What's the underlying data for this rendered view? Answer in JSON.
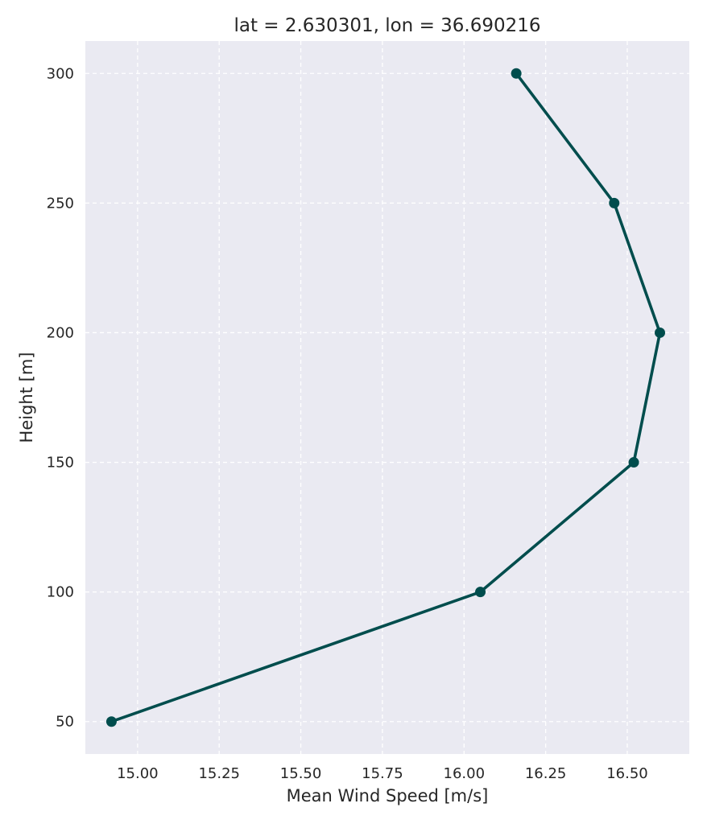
{
  "chart_data": {
    "type": "line",
    "title": "lat = 2.630301, lon = 36.690216",
    "xlabel": "Mean Wind Speed [m/s]",
    "ylabel": "Height [m]",
    "xlim": [
      14.84,
      16.69
    ],
    "ylim": [
      37.5,
      312.5
    ],
    "xticks": [
      "15.00",
      "15.25",
      "15.50",
      "15.75",
      "16.00",
      "16.25",
      "16.50"
    ],
    "yticks": [
      "50",
      "100",
      "150",
      "200",
      "250",
      "300"
    ],
    "grid": true,
    "grid_style": "dashed",
    "background": "#EAEAF2",
    "series": [
      {
        "color": "#004D4D",
        "marker": "circle",
        "points": [
          {
            "x": 14.92,
            "y": 50
          },
          {
            "x": 16.05,
            "y": 100
          },
          {
            "x": 16.52,
            "y": 150
          },
          {
            "x": 16.6,
            "y": 200
          },
          {
            "x": 16.46,
            "y": 250
          },
          {
            "x": 16.16,
            "y": 300
          }
        ]
      }
    ]
  }
}
